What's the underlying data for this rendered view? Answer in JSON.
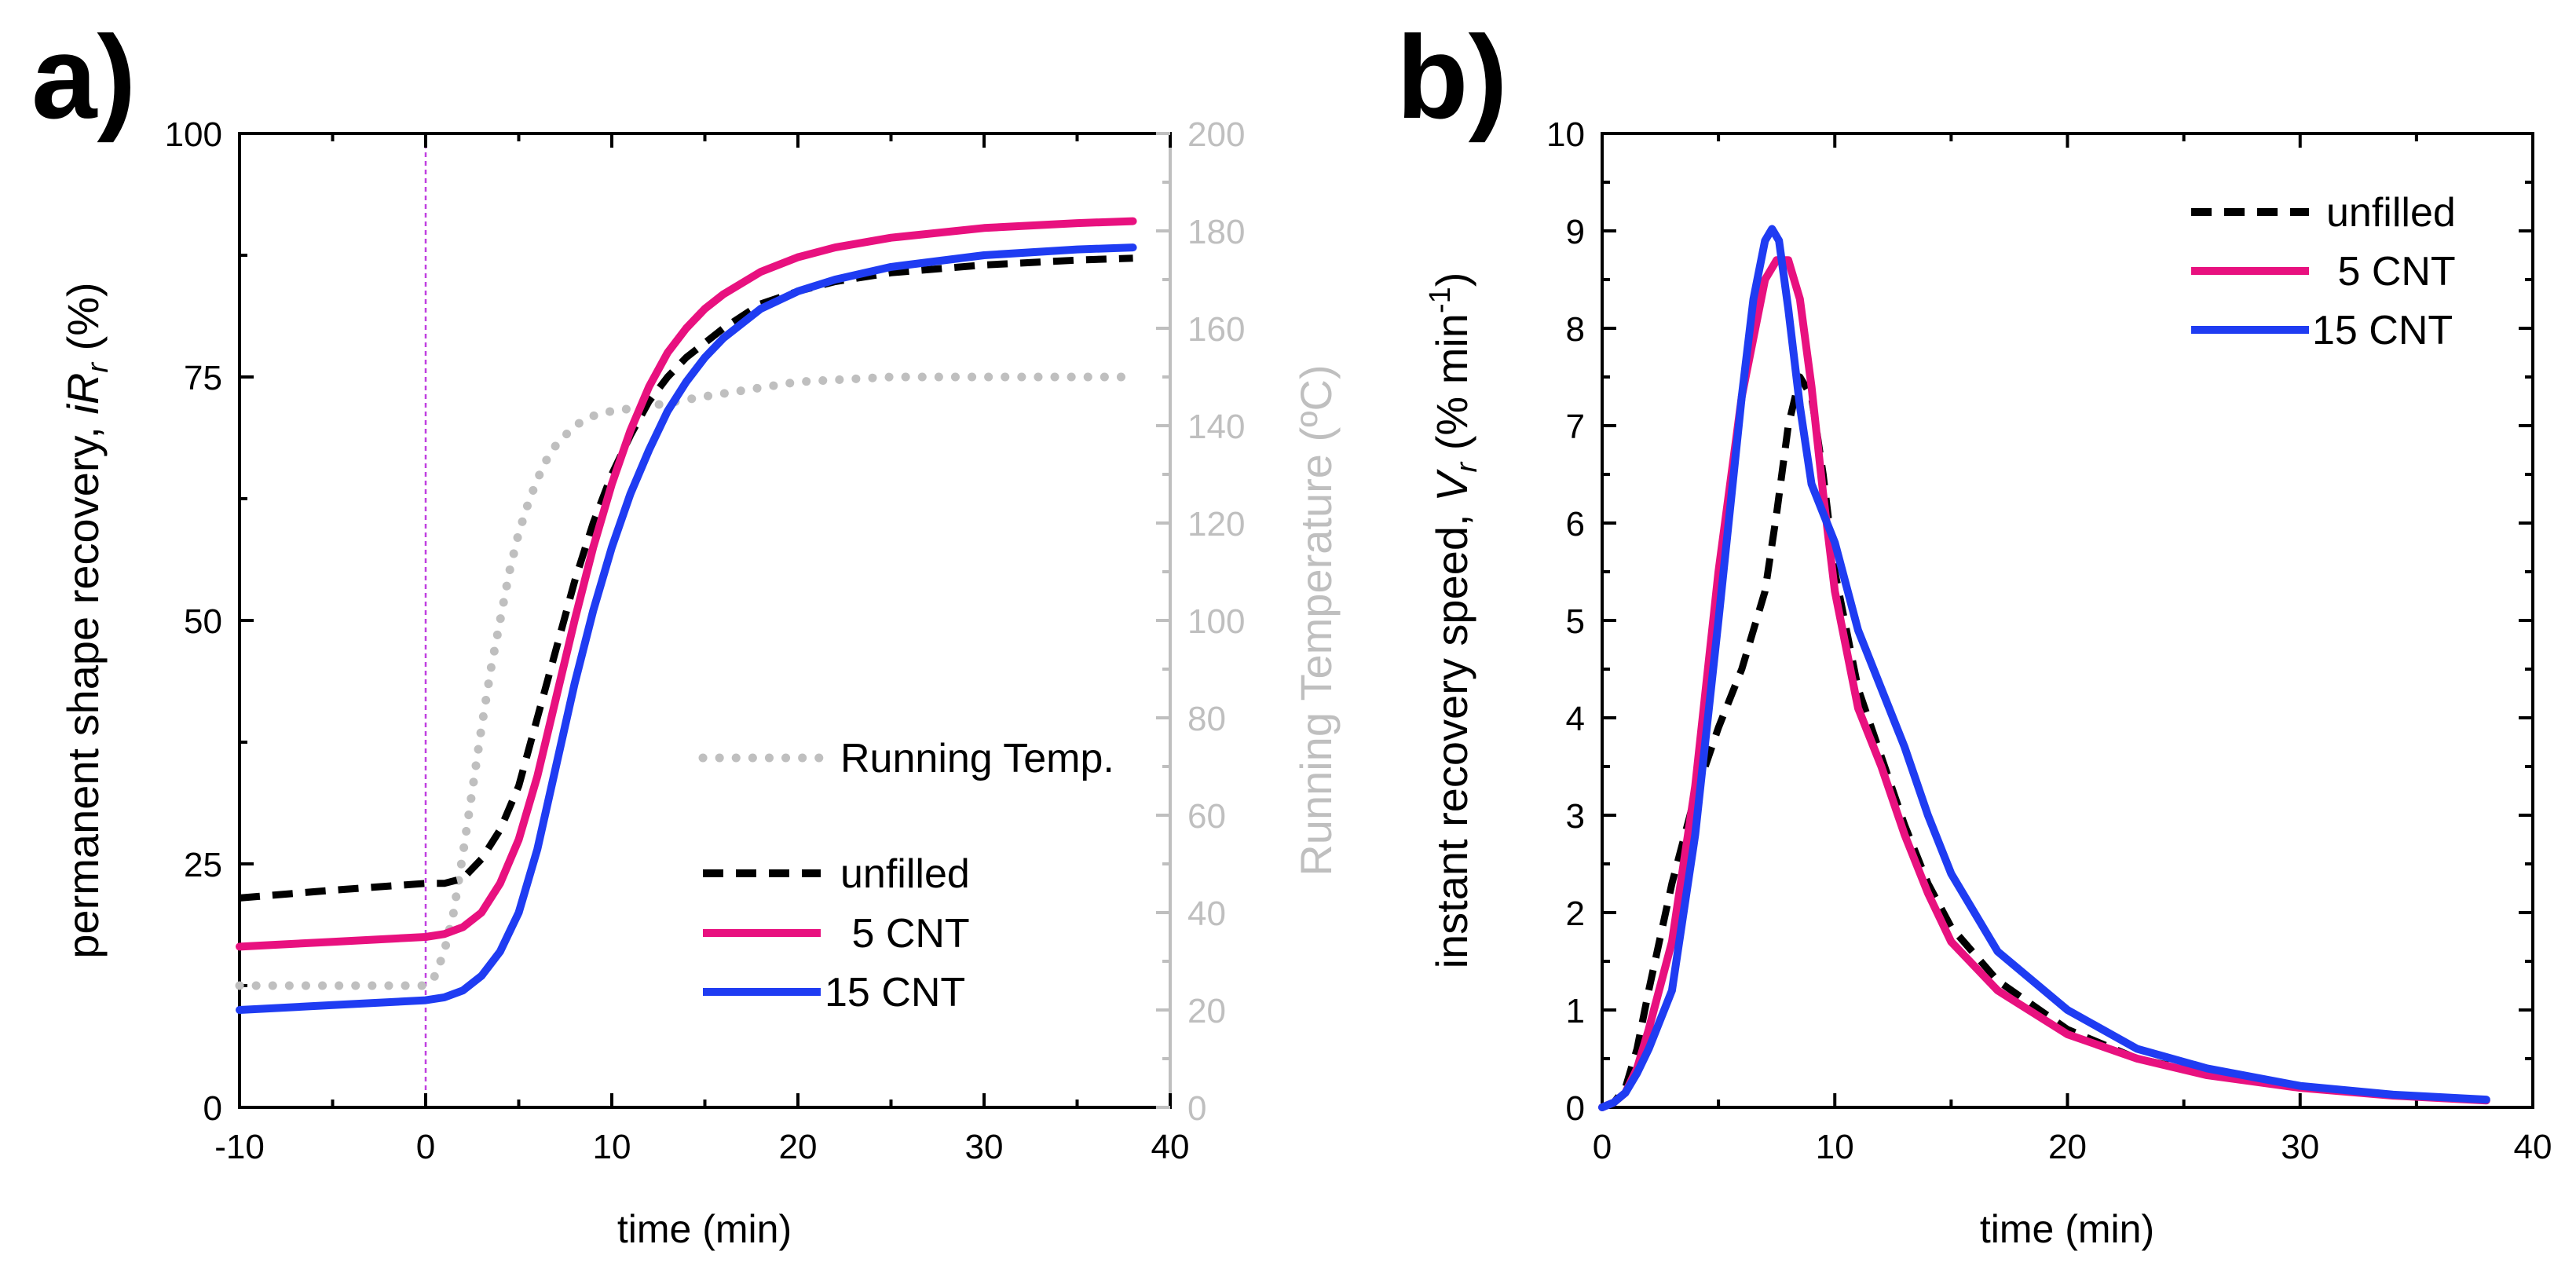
{
  "chart_data": [
    {
      "panel_label": "a)",
      "type": "line",
      "xlabel": "time (min)",
      "ylabel_main": "permanent shape recovery, ",
      "ylabel_italic": "iR",
      "ylabel_sub": "r",
      "ylabel_tail": " (%)",
      "y2label": "Running Temperature (ºC)",
      "xlim": [
        -10,
        40
      ],
      "ylim": [
        0,
        100
      ],
      "y2lim": [
        0,
        200
      ],
      "x_ticks": [
        -10,
        0,
        10,
        20,
        30,
        40
      ],
      "x_tick_labels": [
        "-10",
        "0",
        "10",
        "20",
        "30",
        "40"
      ],
      "y_ticks": [
        0,
        25,
        50,
        75,
        100
      ],
      "y_tick_labels": [
        "0",
        "25",
        "50",
        "75",
        "100"
      ],
      "y2_ticks": [
        0,
        20,
        40,
        60,
        80,
        100,
        120,
        140,
        160,
        180,
        200
      ],
      "y2_tick_labels": [
        "0",
        "20",
        "40",
        "60",
        "80",
        "100",
        "120",
        "140",
        "160",
        "180",
        "200"
      ],
      "vline_x": 0,
      "series": [
        {
          "name": "unfilled",
          "axis": "left",
          "color": "#000000",
          "style": "dashed",
          "x": [
            -10,
            -5,
            0,
            1,
            2,
            3,
            4,
            5,
            6,
            7,
            8,
            9,
            10,
            11,
            12,
            13,
            14,
            15,
            16,
            18,
            20,
            22,
            25,
            30,
            35,
            38
          ],
          "y": [
            21.5,
            22.3,
            23,
            23,
            23.5,
            25.5,
            28.5,
            33,
            40,
            47,
            54,
            60,
            65,
            69,
            72.5,
            75,
            77,
            78.5,
            80,
            82.5,
            83.8,
            84.8,
            85.7,
            86.5,
            87,
            87.2
          ]
        },
        {
          "name": " 5 CNT",
          "axis": "left",
          "color": "#e8117f",
          "style": "solid",
          "x": [
            -10,
            -5,
            0,
            1,
            2,
            3,
            4,
            5,
            6,
            7,
            8,
            9,
            10,
            11,
            12,
            13,
            14,
            15,
            16,
            18,
            20,
            22,
            25,
            30,
            35,
            38
          ],
          "y": [
            16.5,
            17,
            17.5,
            17.8,
            18.5,
            20,
            23,
            27.5,
            34,
            42,
            50,
            57.5,
            64,
            69.5,
            74,
            77.5,
            80,
            82,
            83.5,
            85.8,
            87.3,
            88.3,
            89.3,
            90.3,
            90.8,
            91
          ]
        },
        {
          "name": "15 CNT",
          "axis": "left",
          "color": "#1f3cf2",
          "style": "solid",
          "x": [
            -10,
            -5,
            0,
            1,
            2,
            3,
            4,
            5,
            6,
            7,
            8,
            9,
            10,
            11,
            12,
            13,
            14,
            15,
            16,
            18,
            20,
            22,
            25,
            30,
            35,
            38
          ],
          "y": [
            10,
            10.5,
            11,
            11.3,
            12,
            13.5,
            16,
            20,
            26.5,
            35,
            43.5,
            51,
            57.5,
            63,
            67.5,
            71.5,
            74.5,
            77,
            79,
            82,
            83.8,
            85,
            86.3,
            87.5,
            88.1,
            88.3
          ]
        },
        {
          "name": "Running Temp.",
          "axis": "right",
          "color": "#bfbfbf",
          "style": "dotted",
          "x": [
            -10,
            -5,
            0,
            0.5,
            1,
            1.5,
            2,
            2.5,
            3,
            3.5,
            4,
            4.5,
            5,
            5.5,
            6,
            6.5,
            7,
            7.5,
            8,
            9,
            10,
            12,
            15,
            20,
            25,
            30,
            35,
            38
          ],
          "y": [
            25,
            25,
            25,
            27,
            32,
            40,
            52,
            65,
            78,
            90,
            100,
            110,
            118,
            124,
            129,
            133,
            136,
            138,
            140,
            142,
            143,
            144,
            146,
            149,
            150,
            150,
            150,
            150
          ]
        }
      ]
    },
    {
      "panel_label": "b)",
      "type": "line",
      "xlabel": "time (min)",
      "ylabel_main": "instant recovery speed, ",
      "ylabel_italic": "V",
      "ylabel_sub": "r",
      "ylabel_tail": " (% min",
      "ylabel_sup": "-1",
      "ylabel_close": ")",
      "xlim": [
        0,
        40
      ],
      "ylim": [
        0,
        10
      ],
      "x_ticks": [
        0,
        10,
        20,
        30,
        40
      ],
      "x_tick_labels": [
        "0",
        "10",
        "20",
        "30",
        "40"
      ],
      "y_ticks": [
        0,
        1,
        2,
        3,
        4,
        5,
        6,
        7,
        8,
        9,
        10
      ],
      "y_tick_labels": [
        "0",
        "1",
        "2",
        "3",
        "4",
        "5",
        "6",
        "7",
        "8",
        "9",
        "10"
      ],
      "series": [
        {
          "name": "unfilled",
          "color": "#000000",
          "style": "dashed",
          "x": [
            0,
            0.5,
            1,
            1.5,
            2,
            3,
            4,
            5,
            6,
            7,
            7.5,
            8,
            8.5,
            9,
            9.5,
            10,
            11,
            12,
            13,
            14,
            15,
            17,
            20,
            23,
            26,
            30,
            34,
            38
          ],
          "y": [
            0,
            0.05,
            0.2,
            0.6,
            1.2,
            2.3,
            3.2,
            3.9,
            4.5,
            5.3,
            6.1,
            7,
            7.5,
            7.3,
            6.5,
            5.5,
            4.3,
            3.6,
            2.9,
            2.3,
            1.85,
            1.3,
            0.8,
            0.5,
            0.35,
            0.2,
            0.12,
            0.08
          ]
        },
        {
          "name": " 5 CNT",
          "color": "#e8117f",
          "style": "solid",
          "x": [
            0,
            0.5,
            1,
            1.5,
            2,
            3,
            4,
            5,
            6,
            7,
            7.5,
            8,
            8.5,
            9,
            9.5,
            10,
            11,
            12,
            13,
            14,
            15,
            17,
            20,
            23,
            26,
            30,
            34,
            38
          ],
          "y": [
            0,
            0.05,
            0.15,
            0.4,
            0.8,
            1.7,
            3.3,
            5.5,
            7.3,
            8.5,
            8.7,
            8.7,
            8.3,
            7.4,
            6.3,
            5.3,
            4.1,
            3.5,
            2.8,
            2.2,
            1.7,
            1.2,
            0.75,
            0.5,
            0.33,
            0.2,
            0.12,
            0.07
          ]
        },
        {
          "name": "15 CNT",
          "color": "#1f3cf2",
          "style": "solid",
          "x": [
            0,
            0.5,
            1,
            1.5,
            2,
            3,
            4,
            5,
            6,
            6.5,
            7,
            7.3,
            7.6,
            8,
            8.5,
            9,
            9.5,
            10,
            11,
            12,
            13,
            14,
            15,
            17,
            20,
            23,
            26,
            30,
            34,
            38
          ],
          "y": [
            0,
            0.05,
            0.15,
            0.35,
            0.6,
            1.2,
            2.8,
            5.0,
            7.3,
            8.3,
            8.9,
            9.02,
            8.9,
            8.2,
            7.2,
            6.4,
            6.1,
            5.8,
            4.9,
            4.3,
            3.7,
            3.0,
            2.4,
            1.6,
            1.0,
            0.6,
            0.4,
            0.22,
            0.13,
            0.08
          ]
        }
      ]
    }
  ]
}
